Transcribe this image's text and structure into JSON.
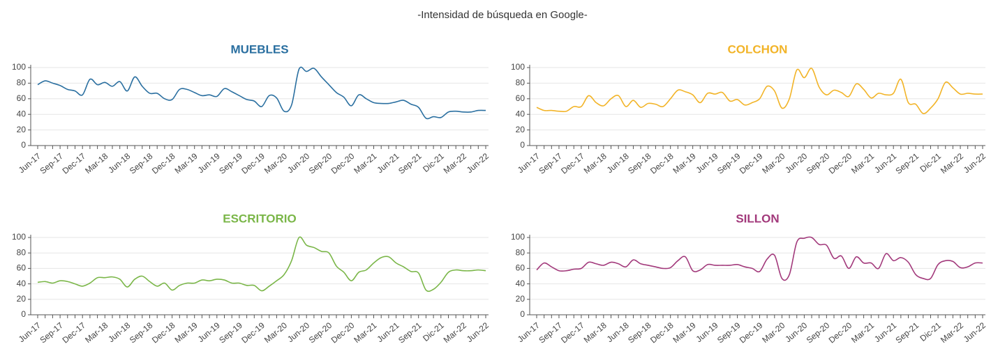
{
  "title": "-Intensidad de búsqueda en Google-",
  "chart_data": [
    {
      "type": "line",
      "title": "MUEBLES",
      "color": "#2a6fa0",
      "categories": [
        "Jun-17",
        null,
        null,
        "Sep-17",
        null,
        null,
        "Dec-17",
        null,
        null,
        "Mar-18",
        null,
        null,
        "Jun-18",
        null,
        null,
        "Sep-18",
        null,
        null,
        "Dec-18",
        null,
        null,
        "Mar-19",
        null,
        null,
        "Jun-19",
        null,
        null,
        "Sep-19",
        null,
        null,
        "Dec-19",
        null,
        null,
        "Mar-20",
        null,
        null,
        "Jun-20",
        null,
        null,
        "Sep-20",
        null,
        null,
        "Dec-20",
        null,
        null,
        "Mar-21",
        null,
        null,
        "Jun-21",
        null,
        null,
        "Sep-21",
        null,
        null,
        "Dic-21",
        null,
        null,
        "Mar-22",
        null,
        null,
        "Jun-22"
      ],
      "values": [
        78,
        83,
        80,
        77,
        72,
        70,
        65,
        85,
        78,
        81,
        76,
        82,
        70,
        88,
        76,
        67,
        67,
        60,
        59,
        72,
        72,
        68,
        64,
        65,
        63,
        73,
        69,
        64,
        59,
        57,
        50,
        64,
        61,
        44,
        52,
        98,
        95,
        99,
        88,
        78,
        68,
        62,
        51,
        65,
        60,
        55,
        54,
        54,
        56,
        58,
        53,
        49,
        35,
        37,
        36,
        43,
        44,
        43,
        43,
        45,
        45
      ],
      "ylim": [
        0,
        100
      ],
      "yticks": [
        0,
        20,
        40,
        60,
        80,
        100
      ],
      "grid": true
    },
    {
      "type": "line",
      "title": "COLCHON",
      "color": "#f2b428",
      "categories": [
        "Jun-17",
        null,
        null,
        "Sep-17",
        null,
        null,
        "Dec-17",
        null,
        null,
        "Mar-18",
        null,
        null,
        "Jun-18",
        null,
        null,
        "Sep-18",
        null,
        null,
        "Dec-18",
        null,
        null,
        "Mar-19",
        null,
        null,
        "Jun-19",
        null,
        null,
        "Sep-19",
        null,
        null,
        "Dec-19",
        null,
        null,
        "Mar-20",
        null,
        null,
        "Jun-20",
        null,
        null,
        "Sep-20",
        null,
        null,
        "Dec-20",
        null,
        null,
        "Mar-21",
        null,
        null,
        "Jun-21",
        null,
        null,
        "Sep-21",
        null,
        null,
        "Dic-21",
        null,
        null,
        "Mar-22",
        null,
        null,
        "Jun-22"
      ],
      "values": [
        49,
        45,
        45,
        44,
        44,
        50,
        50,
        64,
        55,
        51,
        60,
        64,
        50,
        58,
        49,
        54,
        53,
        50,
        60,
        71,
        69,
        65,
        55,
        67,
        66,
        68,
        57,
        59,
        52,
        55,
        60,
        76,
        70,
        48,
        60,
        97,
        87,
        99,
        75,
        65,
        71,
        68,
        63,
        79,
        72,
        61,
        67,
        65,
        67,
        85,
        55,
        53,
        41,
        48,
        60,
        81,
        74,
        66,
        67,
        66,
        66
      ],
      "ylim": [
        0,
        100
      ],
      "yticks": [
        0,
        20,
        40,
        60,
        80,
        100
      ],
      "grid": true
    },
    {
      "type": "line",
      "title": "ESCRITORIO",
      "color": "#7ab648",
      "categories": [
        "Jun-17",
        null,
        null,
        "Sep-17",
        null,
        null,
        "Dec-17",
        null,
        null,
        "Mar-18",
        null,
        null,
        "Jun-18",
        null,
        null,
        "Sep-18",
        null,
        null,
        "Dec-18",
        null,
        null,
        "Mar-19",
        null,
        null,
        "Jun-19",
        null,
        null,
        "Sep-19",
        null,
        null,
        "Dec-19",
        null,
        null,
        "Mar-20",
        null,
        null,
        "Jun-20",
        null,
        null,
        "Sep-20",
        null,
        null,
        "Dec-20",
        null,
        null,
        "Mar-21",
        null,
        null,
        "Jun-21",
        null,
        null,
        "Sep-21",
        null,
        null,
        "Dic-21",
        null,
        null,
        "Mar-22",
        null,
        null,
        "Jun-22"
      ],
      "values": [
        42,
        43,
        41,
        44,
        43,
        40,
        37,
        41,
        48,
        48,
        49,
        46,
        36,
        46,
        50,
        43,
        37,
        41,
        32,
        38,
        41,
        41,
        45,
        44,
        46,
        45,
        41,
        41,
        38,
        38,
        31,
        37,
        44,
        52,
        70,
        100,
        90,
        87,
        82,
        80,
        63,
        55,
        44,
        55,
        58,
        67,
        74,
        75,
        67,
        62,
        56,
        54,
        32,
        33,
        42,
        55,
        58,
        57,
        57,
        58,
        57
      ],
      "ylim": [
        0,
        100
      ],
      "yticks": [
        0,
        20,
        40,
        60,
        80,
        100
      ],
      "grid": true
    },
    {
      "type": "line",
      "title": "SILLON",
      "color": "#a2397b",
      "categories": [
        "Jun-17",
        null,
        null,
        "Sep-17",
        null,
        null,
        "Dec-17",
        null,
        null,
        "Mar-18",
        null,
        null,
        "Jun-18",
        null,
        null,
        "Sep-18",
        null,
        null,
        "Dec-18",
        null,
        null,
        "Mar-19",
        null,
        null,
        "Jun-19",
        null,
        null,
        "Sep-19",
        null,
        null,
        "Dec-19",
        null,
        null,
        "Mar-20",
        null,
        null,
        "Jun-20",
        null,
        null,
        "Sep-20",
        null,
        null,
        "Dec-20",
        null,
        null,
        "Mar-21",
        null,
        null,
        "Jun-21",
        null,
        null,
        "Sep-21",
        null,
        null,
        "Dic-21",
        null,
        null,
        "Mar-22",
        null,
        null,
        "Jun-22"
      ],
      "values": [
        58,
        67,
        62,
        57,
        57,
        59,
        60,
        68,
        66,
        64,
        68,
        66,
        62,
        71,
        66,
        64,
        62,
        60,
        61,
        70,
        75,
        57,
        58,
        65,
        64,
        64,
        64,
        65,
        62,
        60,
        56,
        72,
        77,
        47,
        52,
        94,
        99,
        100,
        91,
        90,
        73,
        76,
        60,
        75,
        67,
        67,
        60,
        79,
        70,
        74,
        68,
        52,
        47,
        47,
        65,
        70,
        69,
        61,
        62,
        67,
        67
      ],
      "ylim": [
        0,
        100
      ],
      "yticks": [
        0,
        20,
        40,
        60,
        80,
        100
      ],
      "grid": true
    }
  ]
}
